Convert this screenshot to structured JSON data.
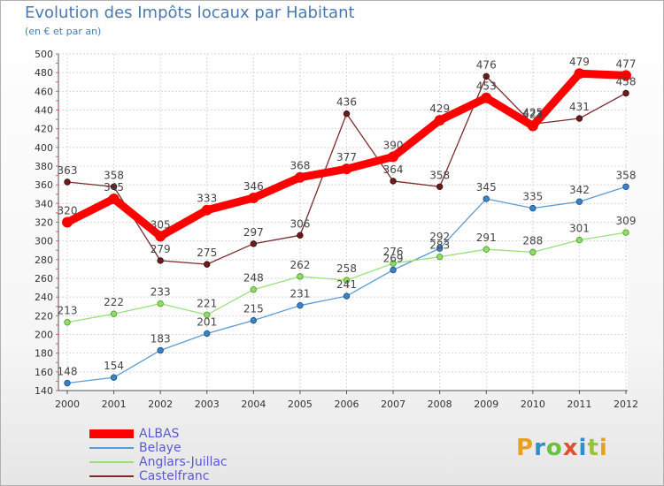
{
  "header": {
    "title": "Evolution des Impôts locaux par Habitant",
    "subtitle": "(en € et par an)"
  },
  "logo": {
    "text": "Proxiti",
    "colors": [
      "#e8a020",
      "#2a8fd0",
      "#6cc040",
      "#e05030",
      "#2a8fd0",
      "#9ac040",
      "#e8a020"
    ]
  },
  "chart_data": {
    "type": "line",
    "x": [
      2000,
      2001,
      2002,
      2003,
      2004,
      2005,
      2006,
      2007,
      2008,
      2009,
      2010,
      2011,
      2012
    ],
    "ylim": [
      140,
      500
    ],
    "yticks": [
      140,
      160,
      180,
      200,
      220,
      240,
      260,
      280,
      300,
      320,
      340,
      360,
      380,
      400,
      420,
      440,
      460,
      480,
      500
    ],
    "grid": true,
    "legend": "bottom-left",
    "series": [
      {
        "name": "ALBAS",
        "color": "#ff0000",
        "values": [
          320,
          345,
          305,
          333,
          346,
          368,
          377,
          390,
          429,
          453,
          423,
          479,
          477
        ]
      },
      {
        "name": "Belaye",
        "color": "#5b9bd5",
        "values": [
          148,
          154,
          183,
          201,
          215,
          231,
          241,
          269,
          292,
          345,
          335,
          342,
          358
        ]
      },
      {
        "name": "Anglars-Juillac",
        "color": "#99e07a",
        "values": [
          213,
          222,
          233,
          221,
          248,
          262,
          258,
          276,
          283,
          291,
          288,
          301,
          309
        ]
      },
      {
        "name": "Castelfranc",
        "color": "#7a2a2a",
        "values": [
          363,
          358,
          279,
          275,
          297,
          306,
          436,
          364,
          358,
          476,
          425,
          431,
          458
        ]
      }
    ]
  }
}
